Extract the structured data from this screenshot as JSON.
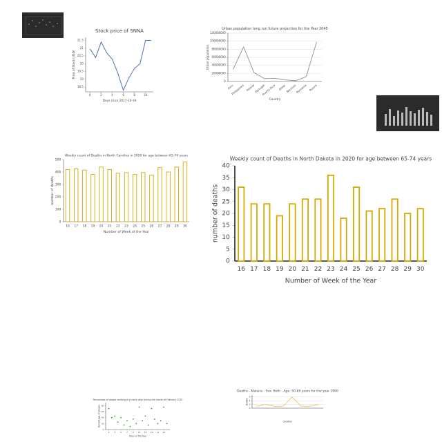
{
  "chart_data": [
    {
      "type": "line",
      "title": "Stock price of SNNA",
      "x_label": "Days since 2017-10-19",
      "y_label": "Price of Stock (USD)",
      "x": [
        0,
        1,
        2,
        3,
        4,
        5,
        6,
        7,
        8,
        9,
        10,
        11
      ],
      "series": [
        {
          "name": "SNNA",
          "color": "#4c72b0",
          "values": [
            20.95,
            20.4,
            21.4,
            20.7,
            20.3,
            19.4,
            18.3,
            19.1,
            19.7,
            20.0,
            21.5,
            21.5
          ]
        }
      ],
      "xlim": [
        -0.8,
        11.4
      ],
      "xticks": [
        0,
        2,
        4,
        6,
        8,
        10
      ],
      "ylim": [
        18.2,
        21.7
      ],
      "yticks": [
        18.5,
        19.0,
        19.5,
        20.0,
        20.5,
        21.0,
        21.5
      ],
      "grid": false
    },
    {
      "type": "line",
      "title": "Urban population long run future projection for the Year 2045",
      "x_label": "Country",
      "y_label": "Urban population",
      "categories": [
        "Peru",
        "Philippines",
        "Poland",
        "Portugal",
        "Puerto Rico",
        "Qatar",
        "Reunion",
        "Romania",
        "Russia"
      ],
      "series": [
        {
          "name": "Urban population",
          "color": "#999999",
          "values": [
            30000000,
            86000000,
            22000000,
            7000000,
            8000000,
            4000000,
            2000000,
            12000000,
            98000000
          ]
        }
      ],
      "ylim": [
        0,
        120000000
      ],
      "yticks": [
        0,
        20000000,
        40000000,
        60000000,
        80000000,
        100000000,
        120000000
      ],
      "grid": true
    },
    {
      "type": "bar",
      "title": "Weekly count of Deaths in North Carolina in 2020 for age between 65-74 years",
      "x_label": "Number of Week of the Year",
      "y_label": "number of deaths",
      "categories": [
        "16",
        "17",
        "18",
        "19",
        "20",
        "21",
        "22",
        "23",
        "24",
        "25",
        "26",
        "27",
        "28",
        "29",
        "30"
      ],
      "values": [
        420,
        425,
        415,
        380,
        440,
        420,
        390,
        395,
        380,
        395,
        375,
        435,
        400,
        440,
        480
      ],
      "color": "#d4a900",
      "ylim": [
        0,
        500
      ],
      "yticks": [
        0,
        100,
        200,
        300,
        400,
        500
      ],
      "grid": false
    },
    {
      "type": "bar",
      "title": "Weekly count of Deaths in North Dakota in 2020 for age between 65-74 years",
      "x_label": "Number of Week of the Year",
      "y_label": "number of deaths",
      "categories": [
        "16",
        "17",
        "18",
        "19",
        "20",
        "21",
        "22",
        "23",
        "24",
        "25",
        "26",
        "27",
        "28",
        "29",
        "30"
      ],
      "values": [
        31,
        24,
        24,
        19,
        24,
        26,
        26,
        36,
        18,
        31,
        21,
        22,
        26,
        20,
        22
      ],
      "color": "#d4a900",
      "ylim": [
        0,
        40
      ],
      "yticks": [
        0,
        5,
        10,
        15,
        20,
        25,
        30,
        35,
        40
      ],
      "grid": false
    },
    {
      "type": "scatter",
      "title": "Percentage of people working 6 or more days during the month of February 2020",
      "x_label": "Days of the day",
      "y_label": "Percentage of people",
      "x": [
        1,
        2,
        3,
        4,
        5,
        6,
        7,
        8,
        9,
        10,
        11,
        12,
        13,
        14,
        15,
        16,
        17,
        18,
        19,
        20
      ],
      "series": [
        {
          "name": "Percentage",
          "color": "#2ca02c",
          "values": [
            70,
            40,
            45,
            25,
            40,
            15,
            30,
            10,
            35,
            20,
            75,
            30,
            45,
            15,
            70,
            35,
            20,
            30,
            75,
            20
          ]
        }
      ],
      "xlim": [
        0,
        21
      ],
      "xticks": [
        1,
        3,
        5,
        7,
        9,
        11,
        13,
        15,
        17,
        19
      ],
      "ylim": [
        0,
        90
      ],
      "yticks": [
        0,
        20,
        40,
        60,
        80
      ],
      "grid": false
    },
    {
      "type": "line",
      "title": "Deaths - Malaria - Sex: Both - Age: 50-69 years for the year 1990",
      "x_label": "Location",
      "y_label": "Deaths",
      "categories": [
        null,
        null,
        null,
        null,
        null,
        null,
        null,
        null
      ],
      "series": [
        {
          "name": "Deaths",
          "color": "#e8c040",
          "values": [
            1,
            2,
            1,
            1,
            6,
            1,
            1,
            2
          ]
        }
      ],
      "ylim": [
        0,
        7
      ],
      "yticks": [
        0,
        2,
        4,
        6
      ],
      "grid": true
    }
  ]
}
